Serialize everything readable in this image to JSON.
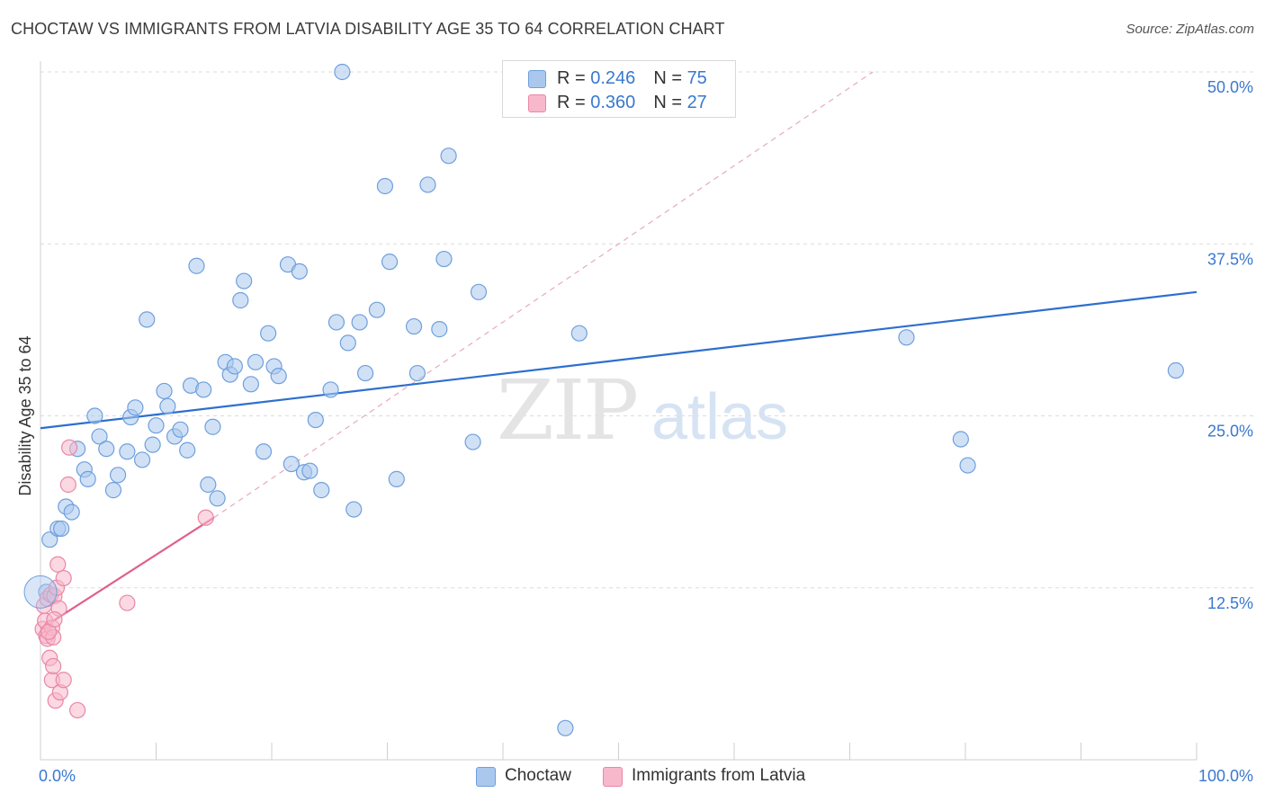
{
  "title": "CHOCTAW VS IMMIGRANTS FROM LATVIA DISABILITY AGE 35 TO 64 CORRELATION CHART",
  "source": "Source: ZipAtlas.com",
  "watermark": {
    "zip": "ZIP",
    "atlas": "atlas"
  },
  "legend": {
    "choctaw": {
      "r_label": "R = ",
      "r_value": "0.246",
      "n_label": "N = ",
      "n_value": "75"
    },
    "latvia": {
      "r_label": "R = ",
      "r_value": "0.360",
      "n_label": "N = ",
      "n_value": "27"
    }
  },
  "bottom_legend": {
    "choctaw": "Choctaw",
    "latvia": "Immigrants from Latvia"
  },
  "colors": {
    "choctaw_fill": "#aac8ee",
    "choctaw_stroke": "#6f9fdc",
    "choctaw_line": "#2d6fcf",
    "latvia_fill": "#f7b8cb",
    "latvia_stroke": "#e887a7",
    "latvia_line": "#e0608c",
    "axis_text": "#3a78d0",
    "grid": "#dcdcdc"
  },
  "chart_data": {
    "type": "scatter",
    "title": "CHOCTAW VS IMMIGRANTS FROM LATVIA DISABILITY AGE 35 TO 64 CORRELATION CHART",
    "xlabel": "",
    "ylabel": "Disability Age 35 to 64",
    "xlim": [
      0,
      100
    ],
    "ylim": [
      0,
      50
    ],
    "x_tick_labels": [
      "0.0%",
      "100.0%"
    ],
    "y_ticks": [
      12.5,
      25.0,
      37.5,
      50.0
    ],
    "y_tick_labels": [
      "12.5%",
      "25.0%",
      "37.5%",
      "50.0%"
    ],
    "series": [
      {
        "name": "Choctaw",
        "r": 0.246,
        "n": 75,
        "trend": {
          "x": [
            0,
            100
          ],
          "y": [
            24.1,
            34.0
          ],
          "style": "solid"
        },
        "points": [
          [
            0.5,
            12.2
          ],
          [
            0.8,
            16.0
          ],
          [
            1.5,
            16.8
          ],
          [
            1.8,
            16.8
          ],
          [
            2.2,
            18.4
          ],
          [
            2.7,
            18.0
          ],
          [
            3.2,
            22.6
          ],
          [
            3.8,
            21.1
          ],
          [
            4.1,
            20.4
          ],
          [
            4.7,
            25.0
          ],
          [
            5.1,
            23.5
          ],
          [
            5.7,
            22.6
          ],
          [
            6.3,
            19.6
          ],
          [
            6.7,
            20.7
          ],
          [
            7.5,
            22.4
          ],
          [
            7.8,
            24.9
          ],
          [
            8.2,
            25.6
          ],
          [
            8.8,
            21.8
          ],
          [
            9.2,
            32.0
          ],
          [
            9.7,
            22.9
          ],
          [
            10.0,
            24.3
          ],
          [
            10.7,
            26.8
          ],
          [
            11.0,
            25.7
          ],
          [
            11.6,
            23.5
          ],
          [
            12.1,
            24.0
          ],
          [
            12.7,
            22.5
          ],
          [
            13.0,
            27.2
          ],
          [
            13.5,
            35.9
          ],
          [
            14.1,
            26.9
          ],
          [
            14.5,
            20.0
          ],
          [
            14.9,
            24.2
          ],
          [
            15.3,
            19.0
          ],
          [
            16.0,
            28.9
          ],
          [
            16.4,
            28.0
          ],
          [
            16.8,
            28.6
          ],
          [
            17.3,
            33.4
          ],
          [
            17.6,
            34.8
          ],
          [
            18.2,
            27.3
          ],
          [
            18.6,
            28.9
          ],
          [
            19.3,
            22.4
          ],
          [
            19.7,
            31.0
          ],
          [
            20.2,
            28.6
          ],
          [
            20.6,
            27.9
          ],
          [
            21.4,
            36.0
          ],
          [
            21.7,
            21.5
          ],
          [
            22.4,
            35.5
          ],
          [
            22.8,
            20.9
          ],
          [
            23.3,
            21.0
          ],
          [
            23.8,
            24.7
          ],
          [
            24.3,
            19.6
          ],
          [
            25.1,
            26.9
          ],
          [
            25.6,
            31.8
          ],
          [
            26.6,
            30.3
          ],
          [
            27.1,
            18.2
          ],
          [
            27.6,
            31.8
          ],
          [
            28.1,
            28.1
          ],
          [
            29.1,
            32.7
          ],
          [
            29.8,
            41.7
          ],
          [
            30.2,
            36.2
          ],
          [
            30.8,
            20.4
          ],
          [
            32.3,
            31.5
          ],
          [
            32.6,
            28.1
          ],
          [
            33.5,
            41.8
          ],
          [
            34.5,
            31.3
          ],
          [
            34.9,
            36.4
          ],
          [
            35.3,
            43.9
          ],
          [
            37.4,
            23.1
          ],
          [
            37.9,
            34.0
          ],
          [
            45.4,
            2.3
          ],
          [
            46.6,
            31.0
          ],
          [
            74.9,
            30.7
          ],
          [
            79.6,
            23.3
          ],
          [
            80.2,
            21.4
          ],
          [
            98.2,
            28.3
          ],
          [
            26.1,
            50.0
          ]
        ]
      },
      {
        "name": "Immigrants from Latvia",
        "r": 0.36,
        "n": 27,
        "trend": {
          "x": [
            0,
            15
          ],
          "y": [
            9.5,
            17.6
          ],
          "style": "solid"
        },
        "trend_extension": {
          "x": [
            15,
            72
          ],
          "y": [
            17.6,
            50.0
          ],
          "style": "dashed"
        },
        "points": [
          [
            0.2,
            9.5
          ],
          [
            0.3,
            11.2
          ],
          [
            0.4,
            10.1
          ],
          [
            0.5,
            9.0
          ],
          [
            0.6,
            11.7
          ],
          [
            0.6,
            8.8
          ],
          [
            0.8,
            7.4
          ],
          [
            0.9,
            12.0
          ],
          [
            1.0,
            9.6
          ],
          [
            1.0,
            5.8
          ],
          [
            1.1,
            6.8
          ],
          [
            1.1,
            8.9
          ],
          [
            1.2,
            11.9
          ],
          [
            1.3,
            4.3
          ],
          [
            1.4,
            12.5
          ],
          [
            1.5,
            14.2
          ],
          [
            1.6,
            11.0
          ],
          [
            1.7,
            4.9
          ],
          [
            2.0,
            5.8
          ],
          [
            2.0,
            13.2
          ],
          [
            2.4,
            20.0
          ],
          [
            2.5,
            22.7
          ],
          [
            3.2,
            3.6
          ],
          [
            7.5,
            11.4
          ],
          [
            14.3,
            17.6
          ],
          [
            0.7,
            9.3
          ],
          [
            1.2,
            10.2
          ]
        ]
      }
    ]
  }
}
